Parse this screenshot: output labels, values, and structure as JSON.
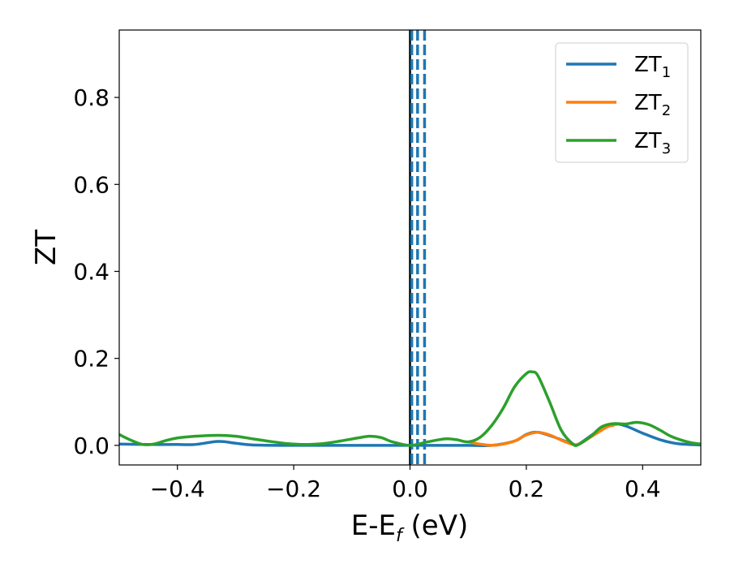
{
  "chart_data": {
    "type": "line",
    "xlabel_main": "E-E",
    "xlabel_sub": "f",
    "xlabel_unit": " (eV)",
    "ylabel": "ZT",
    "xlim": [
      -0.5,
      0.5
    ],
    "ylim": [
      -0.045,
      0.955
    ],
    "xticks": [
      -0.4,
      -0.2,
      0.0,
      0.2,
      0.4
    ],
    "xtick_labels": [
      "−0.4",
      "−0.2",
      "0.0",
      "0.2",
      "0.4"
    ],
    "yticks": [
      0.0,
      0.2,
      0.4,
      0.6,
      0.8
    ],
    "ytick_labels": [
      "0.0",
      "0.2",
      "0.4",
      "0.6",
      "0.8"
    ],
    "grid": false,
    "legend_position": "top-right",
    "series": [
      {
        "name_main": "ZT",
        "name_sub": "1",
        "color": "#1f77b4",
        "x": [
          -0.5,
          -0.45,
          -0.4,
          -0.37,
          -0.33,
          -0.3,
          -0.27,
          -0.2,
          -0.1,
          0.0,
          0.1,
          0.14,
          0.18,
          0.2,
          0.22,
          0.25,
          0.28,
          0.29,
          0.32,
          0.35,
          0.37,
          0.4,
          0.43,
          0.46,
          0.5
        ],
        "y": [
          0.003,
          0.002,
          0.002,
          0.002,
          0.009,
          0.005,
          0.001,
          0.0,
          0.0,
          0.0,
          0.0,
          0.0,
          0.01,
          0.025,
          0.03,
          0.018,
          0.003,
          0.003,
          0.03,
          0.048,
          0.045,
          0.028,
          0.013,
          0.004,
          0.001
        ]
      },
      {
        "name_main": "ZT",
        "name_sub": "2",
        "color": "#ff7f0e",
        "x": [
          0.1,
          0.12,
          0.14,
          0.16,
          0.18,
          0.2,
          0.22,
          0.24,
          0.26,
          0.28,
          0.29,
          0.3,
          0.32,
          0.34,
          0.35
        ],
        "y": [
          0.008,
          0.003,
          0.0,
          0.003,
          0.01,
          0.024,
          0.03,
          0.024,
          0.012,
          0.002,
          0.003,
          0.01,
          0.027,
          0.043,
          0.046
        ]
      },
      {
        "name_main": "ZT",
        "name_sub": "3",
        "color": "#2ca02c",
        "x": [
          -0.5,
          -0.48,
          -0.46,
          -0.44,
          -0.42,
          -0.4,
          -0.37,
          -0.33,
          -0.3,
          -0.27,
          -0.24,
          -0.21,
          -0.18,
          -0.15,
          -0.12,
          -0.09,
          -0.07,
          -0.05,
          -0.03,
          0.0,
          0.03,
          0.06,
          0.08,
          0.1,
          0.12,
          0.14,
          0.16,
          0.18,
          0.2,
          0.21,
          0.22,
          0.24,
          0.26,
          0.28,
          0.29,
          0.31,
          0.33,
          0.35,
          0.37,
          0.39,
          0.41,
          0.43,
          0.45,
          0.48,
          0.5
        ],
        "y": [
          0.025,
          0.012,
          0.002,
          0.003,
          0.011,
          0.017,
          0.021,
          0.023,
          0.021,
          0.015,
          0.009,
          0.004,
          0.002,
          0.004,
          0.01,
          0.017,
          0.021,
          0.018,
          0.008,
          0.0,
          0.008,
          0.015,
          0.013,
          0.008,
          0.018,
          0.045,
          0.085,
          0.135,
          0.165,
          0.169,
          0.16,
          0.1,
          0.035,
          0.003,
          0.002,
          0.02,
          0.043,
          0.05,
          0.049,
          0.053,
          0.048,
          0.035,
          0.02,
          0.007,
          0.003
        ]
      }
    ],
    "vlines": [
      {
        "x": 0.0,
        "color": "#000000",
        "style": "solid"
      },
      {
        "x": 0.003,
        "color": "#1f77b4",
        "style": "dashed"
      },
      {
        "x": 0.013,
        "color": "#1f77b4",
        "style": "dashed"
      },
      {
        "x": 0.025,
        "color": "#1f77b4",
        "style": "dashed"
      }
    ]
  }
}
